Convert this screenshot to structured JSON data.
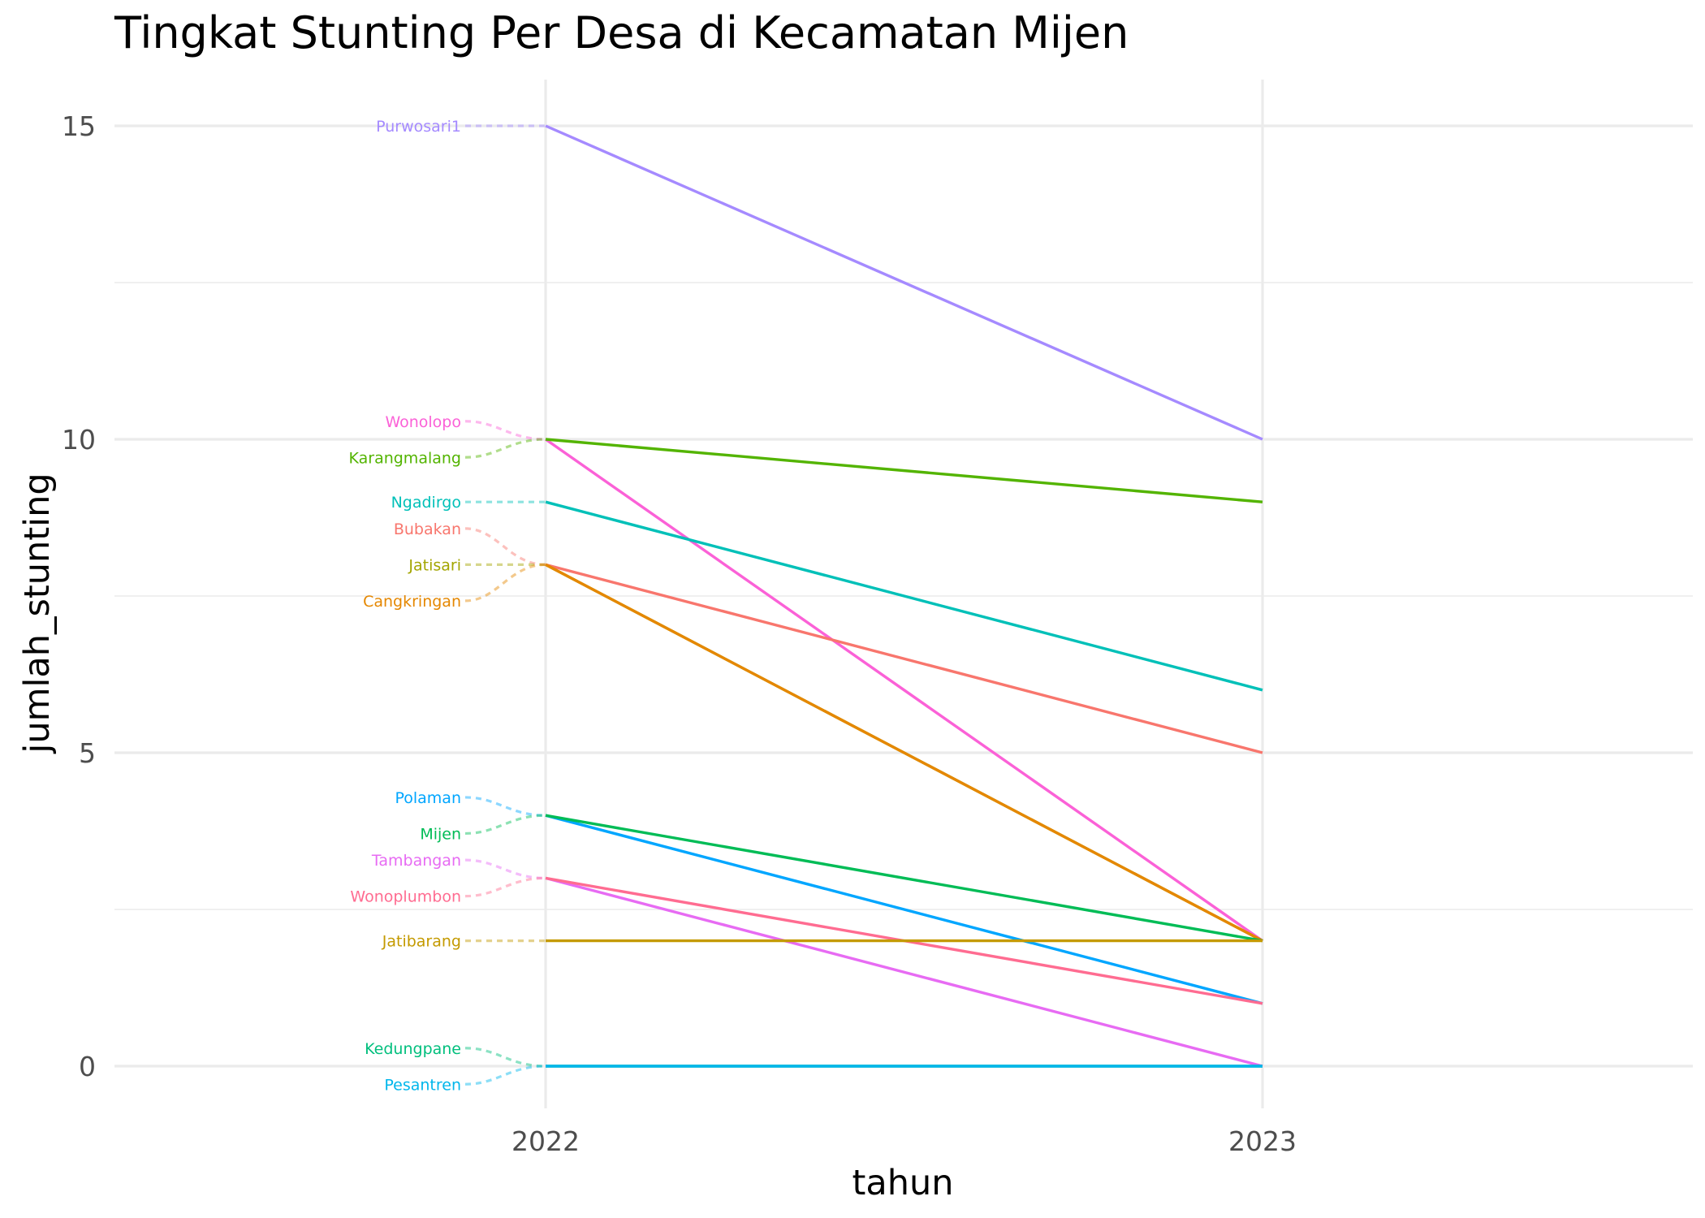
{
  "chart_data": {
    "type": "line",
    "title": "Tingkat Stunting Per Desa di Kecamatan Mijen",
    "xlabel": "tahun",
    "ylabel": "jumlah_stunting",
    "x": [
      "2022",
      "2023"
    ],
    "y_ticks": [
      "0",
      "5",
      "10",
      "15"
    ],
    "ylim": [
      -0.7,
      15.75
    ],
    "grid": true,
    "legend": "none (labels placed left of the 2022 values)",
    "series": [
      {
        "name": "Purwosari1",
        "values": [
          15,
          10
        ],
        "color": "#A58AFF"
      },
      {
        "name": "Wonolopo",
        "values": [
          10,
          2
        ],
        "color": "#FB61D7"
      },
      {
        "name": "Karangmalang",
        "values": [
          10,
          9
        ],
        "color": "#53B400"
      },
      {
        "name": "Ngadirgo",
        "values": [
          9,
          6
        ],
        "color": "#00C0B8"
      },
      {
        "name": "Bubakan",
        "values": [
          8,
          5
        ],
        "color": "#F8766D"
      },
      {
        "name": "Jatisari",
        "values": [
          8,
          2
        ],
        "color": "#A3A500"
      },
      {
        "name": "Cangkringan",
        "values": [
          8,
          2
        ],
        "color": "#E58700"
      },
      {
        "name": "Polaman",
        "values": [
          4,
          1
        ],
        "color": "#00A6FF"
      },
      {
        "name": "Mijen",
        "values": [
          4,
          2
        ],
        "color": "#00BC56"
      },
      {
        "name": "Tambangan",
        "values": [
          3,
          0
        ],
        "color": "#E76BF3"
      },
      {
        "name": "Wonoplumbon",
        "values": [
          3,
          1
        ],
        "color": "#FF6C91"
      },
      {
        "name": "Jatibarang",
        "values": [
          2,
          2
        ],
        "color": "#C49A00"
      },
      {
        "name": "Kedungpane",
        "values": [
          0,
          0
        ],
        "color": "#00BF7D"
      },
      {
        "name": "Pesantren",
        "values": [
          0,
          0
        ],
        "color": "#00B6EB"
      }
    ]
  }
}
